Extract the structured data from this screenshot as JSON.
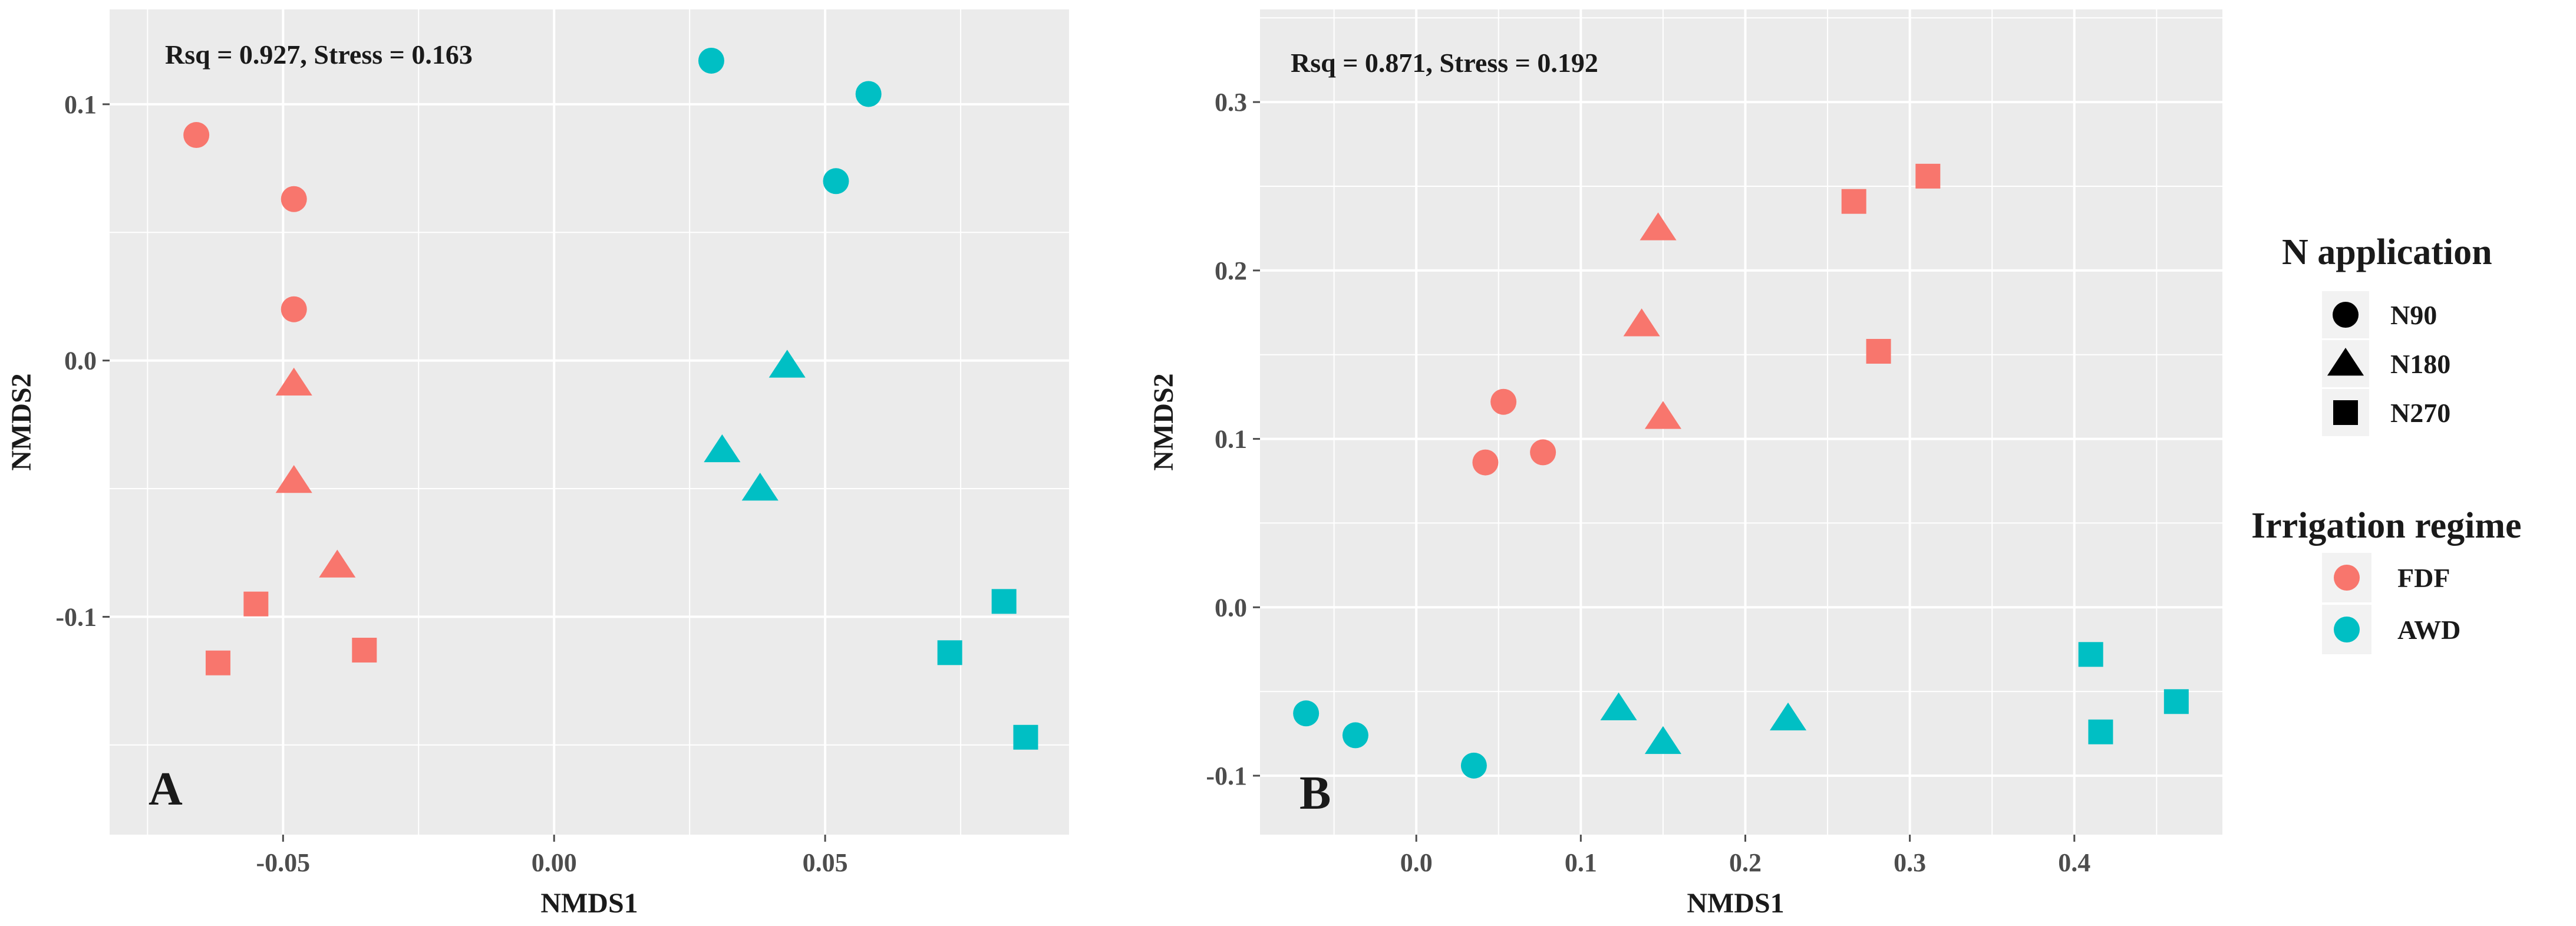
{
  "colors": {
    "FDF": "#F8766D",
    "AWD": "#00BFC4",
    "shape_legend": "#000000"
  },
  "chart_data": [
    {
      "type": "scatter",
      "panel_label": "A",
      "annotation": "Rsq = 0.927, Stress = 0.163",
      "xlabel": "NMDS1",
      "ylabel": "NMDS2",
      "xlim": [
        -0.082,
        0.095
      ],
      "ylim": [
        -0.185,
        0.137
      ],
      "xticks": [
        -0.05,
        0.0,
        0.05
      ],
      "xtick_labels": [
        "-0.05",
        "0.00",
        "0.05"
      ],
      "yticks": [
        -0.1,
        0.0,
        0.1
      ],
      "ytick_labels": [
        "-0.1",
        "0.0",
        "0.1"
      ],
      "points": [
        {
          "x": -0.066,
          "y": 0.088,
          "shape": "N90",
          "irrigation": "FDF"
        },
        {
          "x": -0.048,
          "y": 0.063,
          "shape": "N90",
          "irrigation": "FDF"
        },
        {
          "x": -0.048,
          "y": 0.02,
          "shape": "N90",
          "irrigation": "FDF"
        },
        {
          "x": -0.048,
          "y": -0.009,
          "shape": "N180",
          "irrigation": "FDF"
        },
        {
          "x": -0.048,
          "y": -0.047,
          "shape": "N180",
          "irrigation": "FDF"
        },
        {
          "x": -0.04,
          "y": -0.08,
          "shape": "N180",
          "irrigation": "FDF"
        },
        {
          "x": -0.055,
          "y": -0.095,
          "shape": "N270",
          "irrigation": "FDF"
        },
        {
          "x": -0.062,
          "y": -0.118,
          "shape": "N270",
          "irrigation": "FDF"
        },
        {
          "x": -0.035,
          "y": -0.113,
          "shape": "N270",
          "irrigation": "FDF"
        },
        {
          "x": 0.029,
          "y": 0.117,
          "shape": "N90",
          "irrigation": "AWD"
        },
        {
          "x": 0.058,
          "y": 0.104,
          "shape": "N90",
          "irrigation": "AWD"
        },
        {
          "x": 0.052,
          "y": 0.07,
          "shape": "N90",
          "irrigation": "AWD"
        },
        {
          "x": 0.043,
          "y": -0.002,
          "shape": "N180",
          "irrigation": "AWD"
        },
        {
          "x": 0.031,
          "y": -0.035,
          "shape": "N180",
          "irrigation": "AWD"
        },
        {
          "x": 0.038,
          "y": -0.05,
          "shape": "N180",
          "irrigation": "AWD"
        },
        {
          "x": 0.083,
          "y": -0.094,
          "shape": "N270",
          "irrigation": "AWD"
        },
        {
          "x": 0.073,
          "y": -0.114,
          "shape": "N270",
          "irrigation": "AWD"
        },
        {
          "x": 0.087,
          "y": -0.147,
          "shape": "N270",
          "irrigation": "AWD"
        }
      ]
    },
    {
      "type": "scatter",
      "panel_label": "B",
      "annotation": "Rsq = 0.871, Stress = 0.192",
      "xlabel": "NMDS1",
      "ylabel": "NMDS2",
      "xlim": [
        -0.095,
        0.49
      ],
      "ylim": [
        -0.135,
        0.355
      ],
      "xticks": [
        0.0,
        0.1,
        0.2,
        0.3,
        0.4
      ],
      "xtick_labels": [
        "0.0",
        "0.1",
        "0.2",
        "0.3",
        "0.4"
      ],
      "yticks": [
        -0.1,
        0.0,
        0.1,
        0.2,
        0.3
      ],
      "ytick_labels": [
        "-0.1",
        "0.0",
        "0.1",
        "0.2",
        "0.3"
      ],
      "points": [
        {
          "x": 0.053,
          "y": 0.122,
          "shape": "N90",
          "irrigation": "FDF"
        },
        {
          "x": 0.042,
          "y": 0.086,
          "shape": "N90",
          "irrigation": "FDF"
        },
        {
          "x": 0.077,
          "y": 0.092,
          "shape": "N90",
          "irrigation": "FDF"
        },
        {
          "x": 0.147,
          "y": 0.225,
          "shape": "N180",
          "irrigation": "FDF"
        },
        {
          "x": 0.137,
          "y": 0.168,
          "shape": "N180",
          "irrigation": "FDF"
        },
        {
          "x": 0.15,
          "y": 0.113,
          "shape": "N180",
          "irrigation": "FDF"
        },
        {
          "x": 0.266,
          "y": 0.241,
          "shape": "N270",
          "irrigation": "FDF"
        },
        {
          "x": 0.311,
          "y": 0.256,
          "shape": "N270",
          "irrigation": "FDF"
        },
        {
          "x": 0.281,
          "y": 0.152,
          "shape": "N270",
          "irrigation": "FDF"
        },
        {
          "x": -0.067,
          "y": -0.063,
          "shape": "N90",
          "irrigation": "AWD"
        },
        {
          "x": -0.037,
          "y": -0.076,
          "shape": "N90",
          "irrigation": "AWD"
        },
        {
          "x": 0.035,
          "y": -0.094,
          "shape": "N90",
          "irrigation": "AWD"
        },
        {
          "x": 0.123,
          "y": -0.06,
          "shape": "N180",
          "irrigation": "AWD"
        },
        {
          "x": 0.15,
          "y": -0.08,
          "shape": "N180",
          "irrigation": "AWD"
        },
        {
          "x": 0.226,
          "y": -0.066,
          "shape": "N180",
          "irrigation": "AWD"
        },
        {
          "x": 0.41,
          "y": -0.028,
          "shape": "N270",
          "irrigation": "AWD"
        },
        {
          "x": 0.416,
          "y": -0.074,
          "shape": "N270",
          "irrigation": "AWD"
        },
        {
          "x": 0.462,
          "y": -0.056,
          "shape": "N270",
          "irrigation": "AWD"
        }
      ]
    }
  ],
  "legend": {
    "shape_title": "N application",
    "shape_items": [
      {
        "label": "N90",
        "shape": "N90"
      },
      {
        "label": "N180",
        "shape": "N180"
      },
      {
        "label": "N270",
        "shape": "N270"
      }
    ],
    "color_title": "Irrigation regime",
    "color_items": [
      {
        "label": "FDF",
        "irrigation": "FDF"
      },
      {
        "label": "AWD",
        "irrigation": "AWD"
      }
    ]
  }
}
